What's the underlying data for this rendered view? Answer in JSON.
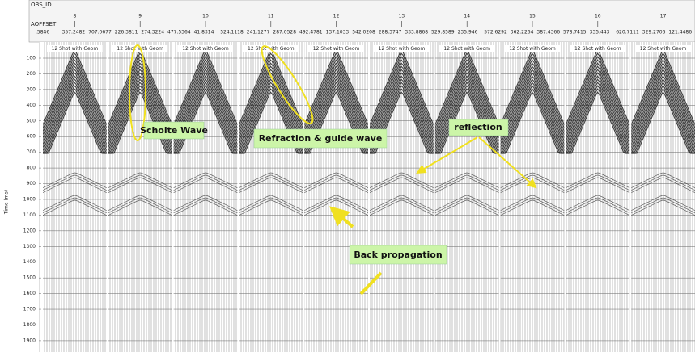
{
  "header": {
    "id_label": "OBS_ID",
    "offset_label": "AOFFSET",
    "panel_ids": [
      "8",
      "9",
      "10",
      "11",
      "12",
      "13",
      "14",
      "15",
      "16",
      "17"
    ],
    "offsets": [
      ".5846",
      "357.2482",
      "707.0677",
      "226.3811",
      "274.3224",
      "477.5364",
      "41.8314",
      "524.1118",
      "241.1277",
      "287.0528",
      "492.4781",
      "137.1033",
      "542.0208",
      "288.3747",
      "333.8868",
      "529.8589",
      "235.946",
      "572.6292",
      "362.2264",
      "387.4366",
      "578.7415",
      "335.443",
      "620.7111",
      "329.2706",
      "121.4486"
    ]
  },
  "panels": {
    "label": "12 Shot with Geom"
  },
  "time_axis": {
    "label": "Time (ms)",
    "ticks": [
      "100",
      "200",
      "300",
      "400",
      "500",
      "600",
      "700",
      "800",
      "900",
      "1000",
      "1100",
      "1200",
      "1300",
      "1400",
      "1500",
      "1600",
      "1700",
      "1800",
      "1900"
    ]
  },
  "annotations": {
    "scholte": "Scholte Wave",
    "refraction": "Refraction  &  guide wave",
    "reflection": "reflection",
    "back": "Back propagation"
  }
}
